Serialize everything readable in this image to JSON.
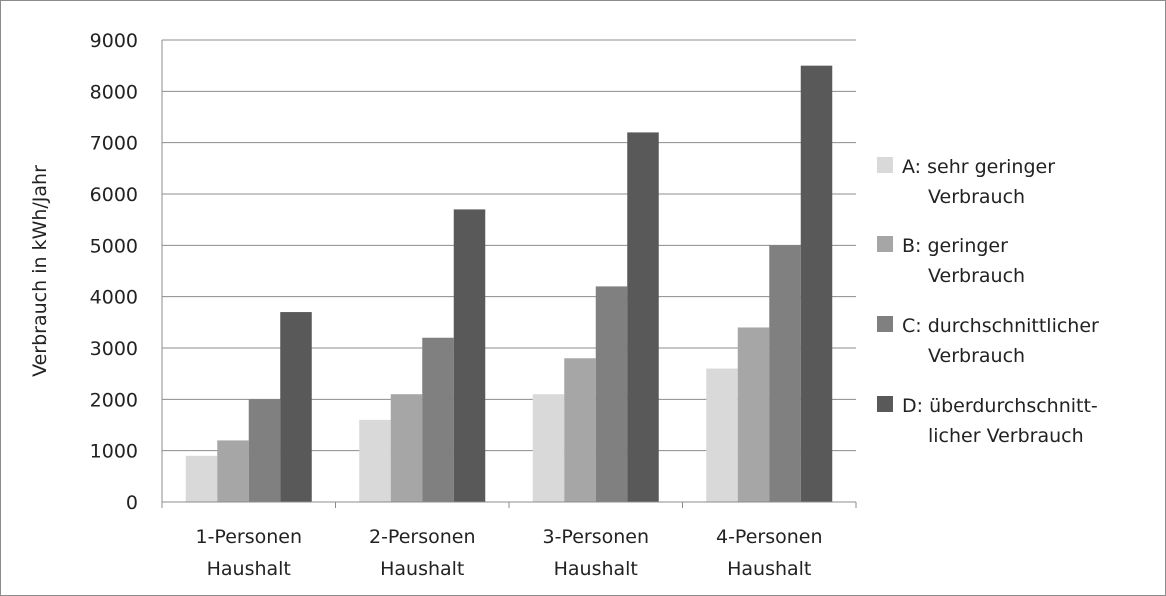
{
  "chart_data": {
    "type": "bar",
    "title": "",
    "xlabel": "",
    "ylabel": "Verbrauch in kWh/Jahr",
    "ylim": [
      0,
      9000
    ],
    "yticks": [
      0,
      1000,
      2000,
      3000,
      4000,
      5000,
      6000,
      7000,
      8000,
      9000
    ],
    "grid": true,
    "legend_position": "right",
    "categories": [
      [
        "1-Personen",
        "Haushalt"
      ],
      [
        "2-Personen",
        "Haushalt"
      ],
      [
        "3-Personen",
        "Haushalt"
      ],
      [
        "4-Personen",
        "Haushalt"
      ]
    ],
    "series": [
      {
        "name": [
          "A: sehr geringer",
          "Verbrauch"
        ],
        "color": "#d9d9d9",
        "values": [
          900,
          1600,
          2100,
          2600
        ]
      },
      {
        "name": [
          "B: geringer",
          "Verbrauch"
        ],
        "color": "#a6a6a6",
        "values": [
          1200,
          2100,
          2800,
          3400
        ]
      },
      {
        "name": [
          "C: durchschnittlicher",
          "Verbrauch"
        ],
        "color": "#808080",
        "values": [
          2000,
          3200,
          4200,
          5000
        ]
      },
      {
        "name": [
          "D: überdurchschnitt-",
          "licher Verbrauch"
        ],
        "color": "#595959",
        "values": [
          3700,
          5700,
          7200,
          8500
        ]
      }
    ]
  }
}
